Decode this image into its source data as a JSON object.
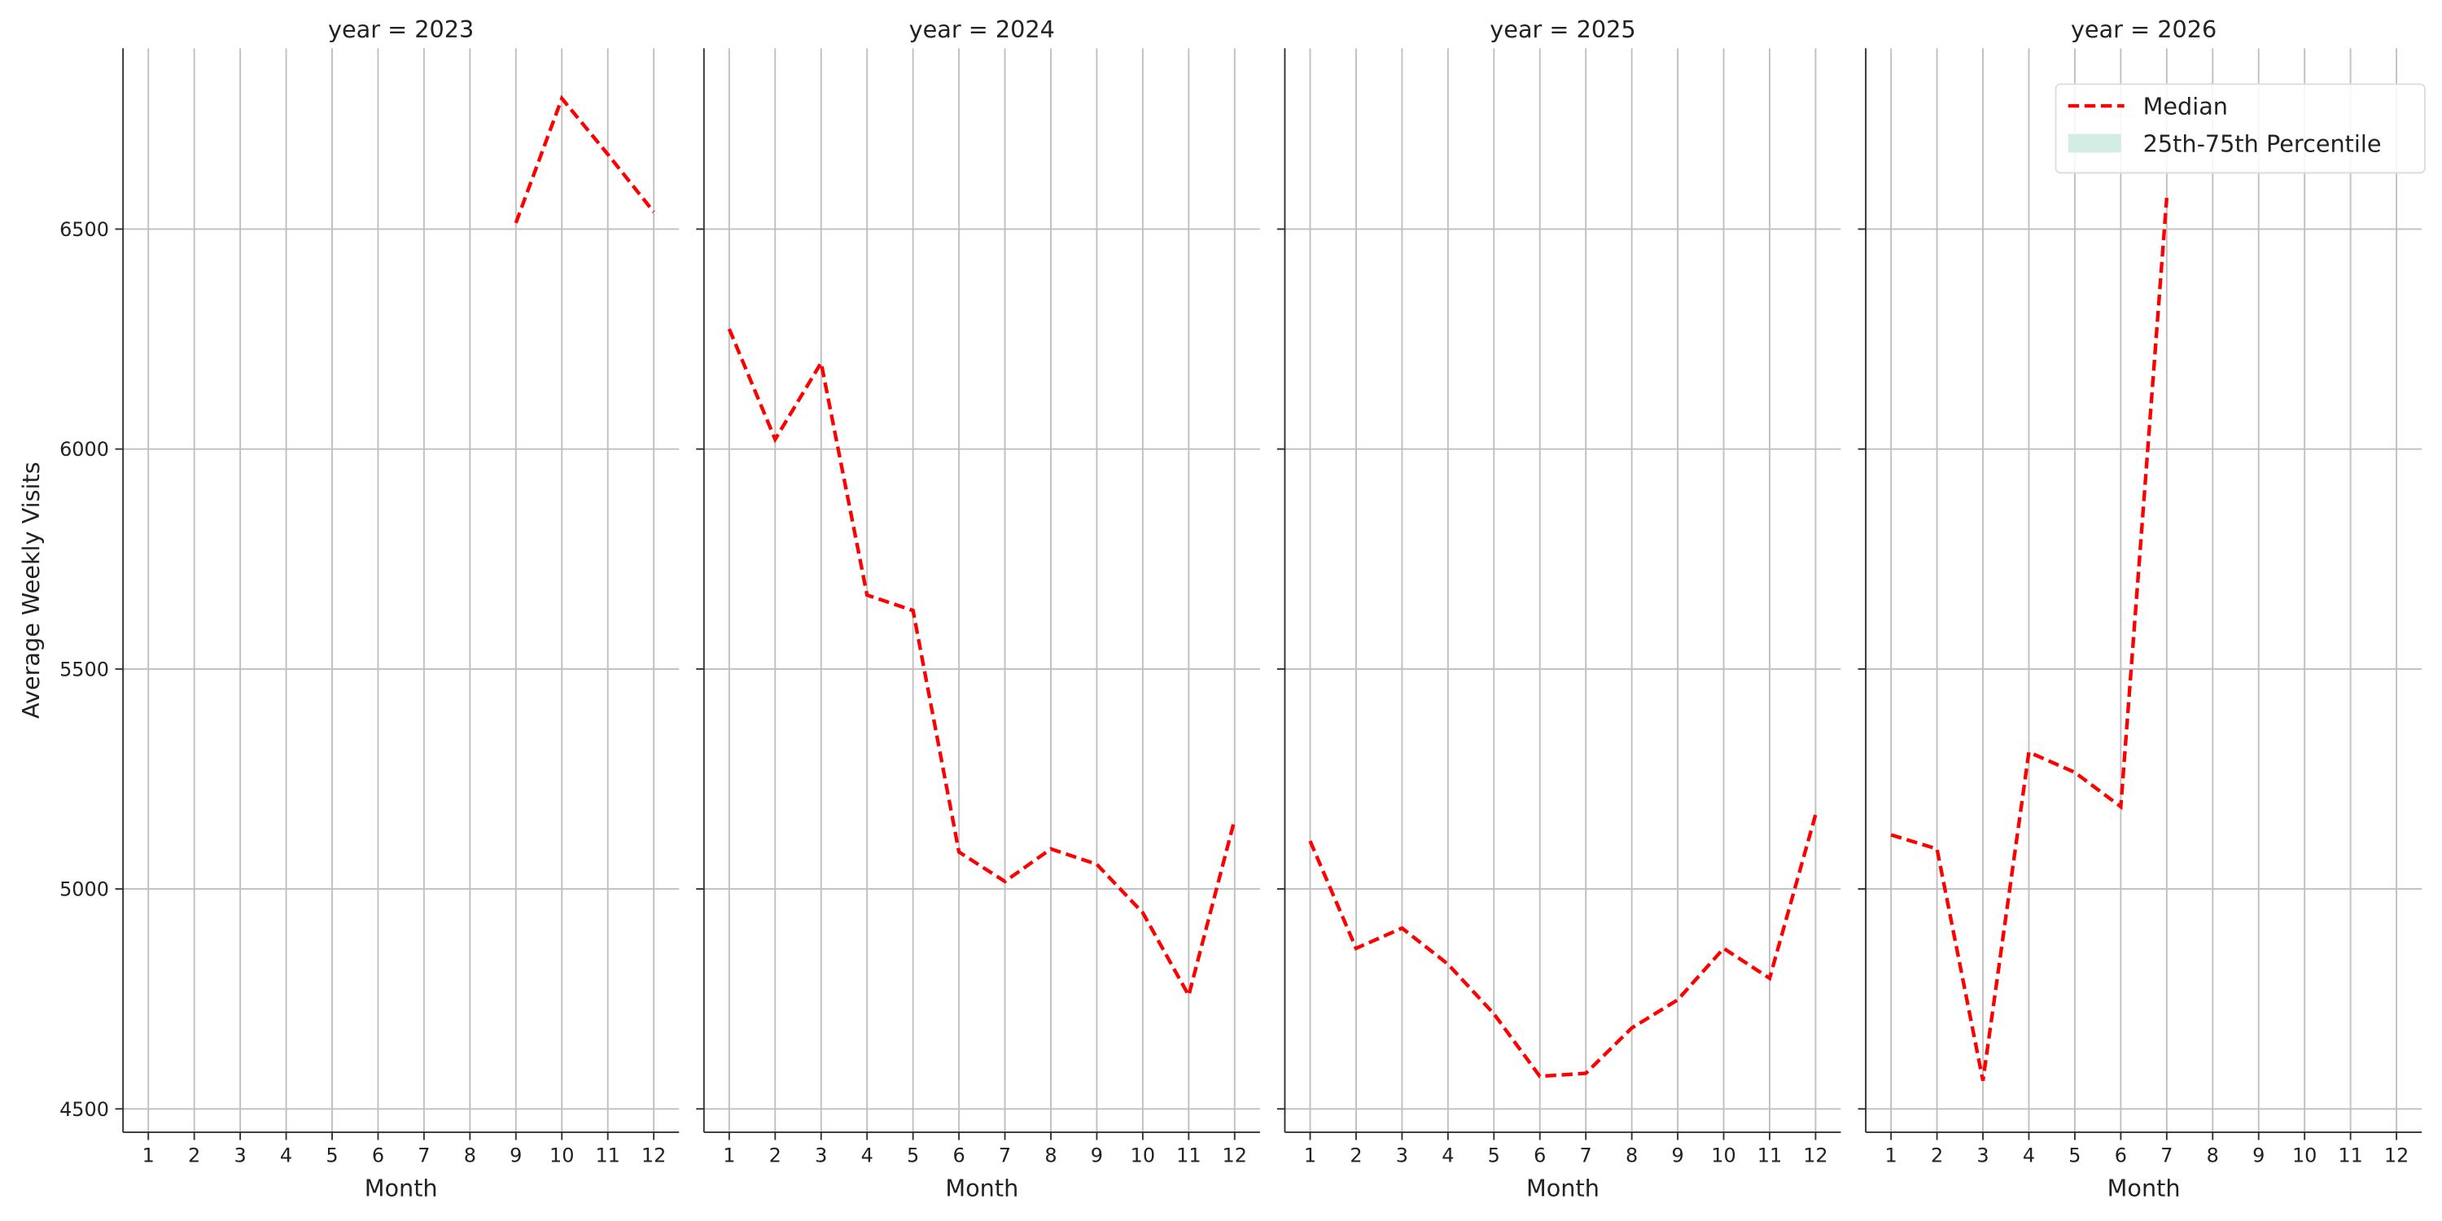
{
  "chart_data": [
    {
      "type": "line",
      "title": "year = 2023",
      "x_label": "Month",
      "y_label": "Average Weekly Visits",
      "xlim": [
        0.45,
        12.55
      ],
      "xticks": [
        1,
        2,
        3,
        4,
        5,
        6,
        7,
        8,
        9,
        10,
        11,
        12
      ],
      "ylim": [
        4447,
        6911
      ],
      "yticks": [
        4500,
        5000,
        5500,
        6000,
        6500
      ],
      "grid": true,
      "series": [
        {
          "name": "Median",
          "color": "#ff0000",
          "x": [
            9,
            10,
            11,
            12
          ],
          "values": [
            6514,
            6797,
            6670,
            6539
          ]
        }
      ]
    },
    {
      "type": "line",
      "title": "year = 2024",
      "x_label": "Month",
      "xlim": [
        0.45,
        12.55
      ],
      "xticks": [
        1,
        2,
        3,
        4,
        5,
        6,
        7,
        8,
        9,
        10,
        11,
        12
      ],
      "ylim": [
        4447,
        6911
      ],
      "yticks": [
        4500,
        5000,
        5500,
        6000,
        6500
      ],
      "grid": true,
      "series": [
        {
          "name": "Median",
          "color": "#ff0000",
          "x": [
            1,
            2,
            3,
            4,
            5,
            6,
            7,
            8,
            9,
            10,
            11,
            12
          ],
          "values": [
            6273,
            6022,
            6196,
            5668,
            5633,
            5084,
            5017,
            5091,
            5056,
            4946,
            4758,
            5158
          ]
        }
      ]
    },
    {
      "type": "line",
      "title": "year = 2025",
      "x_label": "Month",
      "xlim": [
        0.45,
        12.55
      ],
      "xticks": [
        1,
        2,
        3,
        4,
        5,
        6,
        7,
        8,
        9,
        10,
        11,
        12
      ],
      "ylim": [
        4447,
        6911
      ],
      "yticks": [
        4500,
        5000,
        5500,
        6000,
        6500
      ],
      "grid": true,
      "series": [
        {
          "name": "Median",
          "color": "#ff0000",
          "x": [
            1,
            2,
            3,
            4,
            5,
            6,
            7,
            8,
            9,
            10,
            11,
            12
          ],
          "values": [
            5109,
            4865,
            4911,
            4829,
            4716,
            4574,
            4581,
            4684,
            4748,
            4865,
            4797,
            5169
          ]
        }
      ]
    },
    {
      "type": "line",
      "title": "year = 2026",
      "x_label": "Month",
      "xlim": [
        0.45,
        12.55
      ],
      "xticks": [
        1,
        2,
        3,
        4,
        5,
        6,
        7,
        8,
        9,
        10,
        11,
        12
      ],
      "ylim": [
        4447,
        6911
      ],
      "yticks": [
        4500,
        5000,
        5500,
        6000,
        6500
      ],
      "grid": true,
      "legend": "upper right",
      "series": [
        {
          "name": "Median",
          "color": "#ff0000",
          "x": [
            1,
            2,
            3,
            4,
            5,
            6,
            7
          ],
          "values": [
            5123,
            5091,
            4564,
            5311,
            5265,
            5187,
            6571
          ]
        }
      ],
      "band": {
        "name": "25th-75th Percentile",
        "color": "#d4ede4"
      }
    }
  ]
}
